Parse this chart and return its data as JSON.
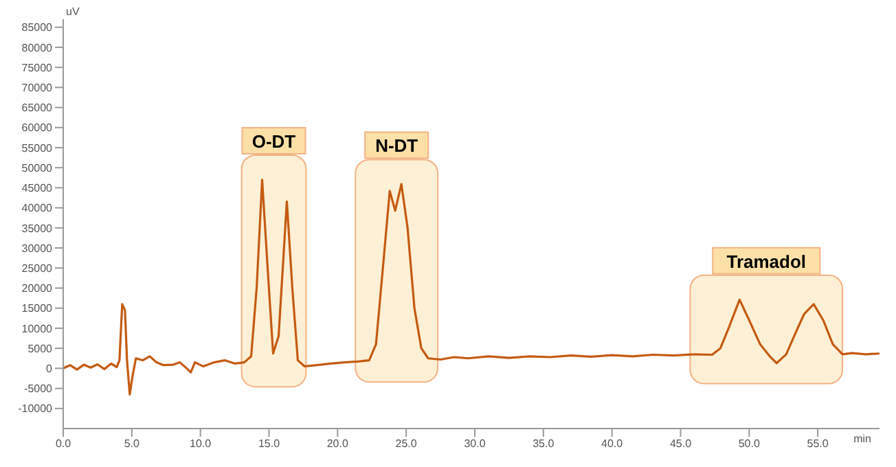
{
  "chart_data": {
    "type": "line",
    "xlabel": "min",
    "ylabel": "uV",
    "x": [
      0,
      0.5,
      1,
      1.5,
      2,
      2.5,
      3,
      3.5,
      3.9,
      4.1,
      4.3,
      4.5,
      4.65,
      4.85,
      5.05,
      5.3,
      5.8,
      6.3,
      6.8,
      7.3,
      8,
      8.5,
      9,
      9.3,
      9.6,
      10.2,
      11,
      11.8,
      12.5,
      13.2,
      13.7,
      14.1,
      14.5,
      14.9,
      15.3,
      15.7,
      16.3,
      16.7,
      17.1,
      17.6,
      18.5,
      19.5,
      20.5,
      21.5,
      22.3,
      22.8,
      23.3,
      23.8,
      24.2,
      24.65,
      25.1,
      25.6,
      26.1,
      26.6,
      27.5,
      28.5,
      29.5,
      31,
      32.5,
      34,
      35.5,
      37,
      38.5,
      40,
      41.5,
      43,
      44.5,
      46,
      47.3,
      47.9,
      48.5,
      49.3,
      50,
      50.8,
      51.5,
      52,
      52.7,
      53.4,
      54,
      54.7,
      55.4,
      56.1,
      56.8,
      57.5,
      58.5,
      59.5
    ],
    "series": [
      {
        "color": "#c55a11",
        "values": [
          0,
          800,
          -300,
          900,
          200,
          1000,
          -200,
          1200,
          300,
          2000,
          16000,
          14500,
          2000,
          -6500,
          -2000,
          2500,
          2000,
          3000,
          1500,
          800,
          900,
          1500,
          0,
          -1000,
          1500,
          500,
          1500,
          2000,
          1200,
          1500,
          3000,
          20000,
          47000,
          25000,
          3700,
          8000,
          41600,
          20000,
          2000,
          500,
          800,
          1200,
          1500,
          1700,
          2000,
          6000,
          25000,
          44200,
          39300,
          45900,
          35000,
          15000,
          5000,
          2500,
          2200,
          2800,
          2500,
          3000,
          2600,
          3000,
          2800,
          3200,
          2900,
          3300,
          3000,
          3400,
          3200,
          3500,
          3400,
          5000,
          10000,
          17100,
          12000,
          6000,
          3000,
          1300,
          3500,
          9000,
          13500,
          16000,
          12000,
          6000,
          3500,
          3800,
          3500,
          3700
        ]
      }
    ],
    "xlim": [
      0,
      59.5
    ],
    "xticks": [
      {
        "value": 0,
        "label": "0.0"
      },
      {
        "value": 5,
        "label": "5.0"
      },
      {
        "value": 10,
        "label": "10.0"
      },
      {
        "value": 15,
        "label": "15.0"
      },
      {
        "value": 20,
        "label": "20.0"
      },
      {
        "value": 25,
        "label": "25.0"
      },
      {
        "value": 30,
        "label": "30.0"
      },
      {
        "value": 35,
        "label": "35.0"
      },
      {
        "value": 40,
        "label": "40.0"
      },
      {
        "value": 45,
        "label": "45.0"
      },
      {
        "value": 50,
        "label": "50.0"
      },
      {
        "value": 55,
        "label": "55.0"
      }
    ],
    "ylim": [
      -15000,
      87000
    ],
    "yticks": [
      -10000,
      -5000,
      0,
      5000,
      10000,
      15000,
      20000,
      25000,
      30000,
      35000,
      40000,
      45000,
      50000,
      55000,
      60000,
      65000,
      70000,
      75000,
      80000,
      85000
    ],
    "bands": [
      {
        "axis": "x",
        "from": 13.0,
        "to": 17.7,
        "label": "O-DT",
        "color": "#fde9c4"
      },
      {
        "axis": "x",
        "from": 21.3,
        "to": 27.3,
        "label": "N-DT",
        "color": "#fde9c4"
      },
      {
        "axis": "x",
        "from": 45.7,
        "to": 56.8,
        "label": "Tramadol",
        "color": "#fde9c4"
      }
    ],
    "grid": false,
    "legend": false,
    "marker": "none",
    "line_style": "solid"
  }
}
